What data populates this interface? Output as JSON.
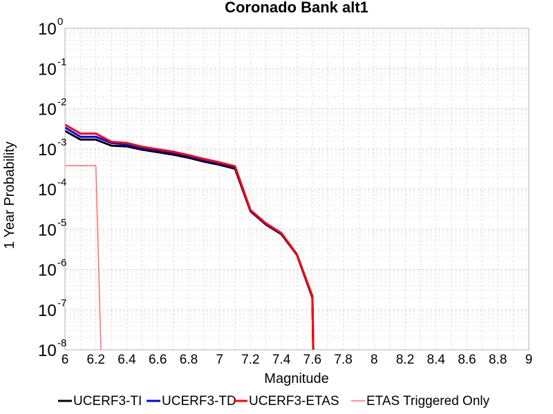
{
  "chart_data": {
    "type": "line",
    "title": "Coronado Bank alt1",
    "xlabel": "Magnitude",
    "ylabel": "1 Year Probability",
    "xlim": [
      6,
      9
    ],
    "ylim": [
      1e-08,
      1
    ],
    "yscale": "log",
    "grid": true,
    "legend_position": "bottom",
    "x_ticks": [
      "6",
      "6.2",
      "6.4",
      "6.6",
      "6.8",
      "7",
      "7.2",
      "7.4",
      "7.6",
      "7.8",
      "8",
      "8.2",
      "8.4",
      "8.6",
      "8.8",
      "9"
    ],
    "y_ticks": [
      {
        "base": "10",
        "exp": "0"
      },
      {
        "base": "10",
        "exp": "-1"
      },
      {
        "base": "10",
        "exp": "-2"
      },
      {
        "base": "10",
        "exp": "-3"
      },
      {
        "base": "10",
        "exp": "-4"
      },
      {
        "base": "10",
        "exp": "-5"
      },
      {
        "base": "10",
        "exp": "-6"
      },
      {
        "base": "10",
        "exp": "-7"
      },
      {
        "base": "10",
        "exp": "-8"
      }
    ],
    "series": [
      {
        "name": "UCERF3-TI",
        "color": "#000000",
        "width": 3,
        "x": [
          6.0,
          6.1,
          6.2,
          6.3,
          6.4,
          6.5,
          6.6,
          6.7,
          6.8,
          6.9,
          7.0,
          7.1,
          7.2,
          7.3,
          7.4,
          7.5,
          7.6,
          7.61
        ],
        "y": [
          0.0028,
          0.0017,
          0.0017,
          0.0012,
          0.00115,
          0.00095,
          0.00083,
          0.00072,
          0.0006,
          0.00048,
          0.0004,
          0.00032,
          2.8e-05,
          1.3e-05,
          7.5e-06,
          2.3e-06,
          2e-07,
          1e-09
        ]
      },
      {
        "name": "UCERF3-TD",
        "color": "#0000ff",
        "width": 3,
        "x": [
          6.0,
          6.1,
          6.2,
          6.3,
          6.4,
          6.5,
          6.6,
          6.7,
          6.8,
          6.9,
          7.0,
          7.1,
          7.2,
          7.3,
          7.4,
          7.5,
          7.6,
          7.61
        ],
        "y": [
          0.0034,
          0.002,
          0.002,
          0.0014,
          0.00128,
          0.00105,
          0.00092,
          0.0008,
          0.00066,
          0.00053,
          0.00044,
          0.00035,
          2.9e-05,
          1.35e-05,
          7.8e-06,
          2.35e-06,
          2.1e-07,
          1e-09
        ]
      },
      {
        "name": "UCERF3-ETAS",
        "color": "#ff0000",
        "width": 3,
        "x": [
          6.0,
          6.1,
          6.2,
          6.3,
          6.4,
          6.5,
          6.6,
          6.7,
          6.8,
          6.9,
          7.0,
          7.1,
          7.2,
          7.3,
          7.4,
          7.5,
          7.6,
          7.61
        ],
        "y": [
          0.004,
          0.0024,
          0.0024,
          0.0015,
          0.0014,
          0.00113,
          0.00098,
          0.00085,
          0.0007,
          0.00056,
          0.00046,
          0.00037,
          3e-05,
          1.4e-05,
          8e-06,
          2.4e-06,
          2.2e-07,
          1e-09
        ]
      },
      {
        "name": "ETAS Triggered Only",
        "color": "#ff6b6b",
        "width": 1.5,
        "x": [
          6.0,
          6.2,
          6.24
        ],
        "y": [
          0.00038,
          0.00038,
          1e-09
        ]
      }
    ]
  }
}
